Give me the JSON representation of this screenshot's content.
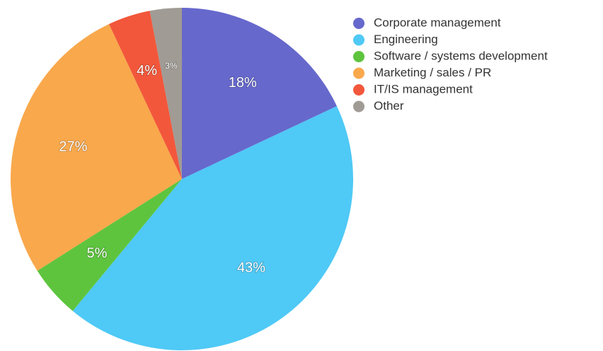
{
  "chart_data": {
    "type": "pie",
    "categories": [
      "Corporate management",
      "Engineering",
      "Software / systems development",
      "Marketing / sales / PR",
      "IT/IS management",
      "Other"
    ],
    "values": [
      18,
      43,
      5,
      27,
      4,
      3
    ],
    "value_labels": [
      "18%",
      "43%",
      "5%",
      "27%",
      "4%",
      "3%"
    ],
    "colors": [
      "#6668cc",
      "#4fc9f6",
      "#5ec43e",
      "#f9a84c",
      "#f2573b",
      "#a09b95"
    ],
    "legend": "top-right"
  }
}
